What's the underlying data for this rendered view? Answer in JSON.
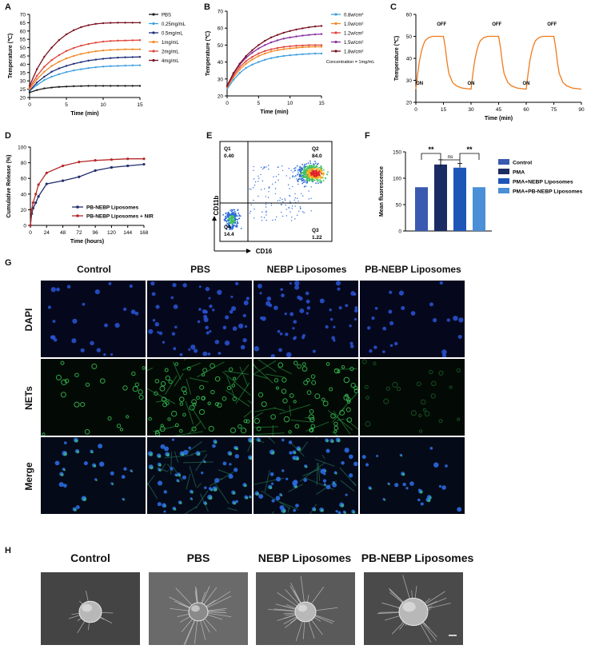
{
  "panels": {
    "A": {
      "label": "A"
    },
    "B": {
      "label": "B"
    },
    "C": {
      "label": "C"
    },
    "D": {
      "label": "D"
    },
    "E": {
      "label": "E"
    },
    "F": {
      "label": "F"
    },
    "G": {
      "label": "G"
    },
    "H": {
      "label": "H"
    }
  },
  "chart_data": [
    {
      "id": "A",
      "type": "line",
      "xlabel": "Time (min)",
      "ylabel": "Temperature (℃)",
      "xlim": [
        0,
        15
      ],
      "ylim": [
        20,
        70
      ],
      "xticks": [
        0,
        5,
        10,
        15
      ],
      "yticks": [
        20,
        25,
        30,
        35,
        40,
        45,
        50,
        55,
        60,
        65,
        70
      ],
      "legend_position": "right",
      "x": [
        0,
        1,
        2,
        3,
        4,
        5,
        6,
        7,
        8,
        9,
        10,
        11,
        12,
        13,
        14,
        15
      ],
      "series": [
        {
          "name": "PBS",
          "color": "#1a1a1a",
          "values": [
            23,
            24.5,
            25.5,
            26,
            26.4,
            26.6,
            26.8,
            26.9,
            27,
            27,
            27,
            27,
            27,
            27,
            27,
            27
          ]
        },
        {
          "name": "0.25mg/mL",
          "color": "#3f9fe0",
          "values": [
            24,
            27.5,
            30.5,
            32.5,
            34,
            35.3,
            36.3,
            37,
            37.7,
            38.2,
            38.6,
            38.9,
            39,
            39.2,
            39.3,
            39.4
          ]
        },
        {
          "name": "0.5mg/mL",
          "color": "#1f2d7a",
          "values": [
            24,
            29,
            32.5,
            35.5,
            37.5,
            39,
            40.3,
            41.3,
            42.2,
            42.8,
            43.3,
            43.7,
            44,
            44.2,
            44.3,
            44.4
          ]
        },
        {
          "name": "1mg/mL",
          "color": "#f08a24",
          "values": [
            25,
            31,
            35.5,
            39,
            41.5,
            43.5,
            45,
            46.2,
            47.1,
            47.8,
            48.3,
            48.6,
            48.8,
            49,
            49,
            49
          ]
        },
        {
          "name": "2mg/mL",
          "color": "#e0453a",
          "values": [
            26,
            33,
            38.5,
            42.5,
            45.5,
            48,
            49.8,
            51.2,
            52.2,
            53,
            53.6,
            54,
            54.2,
            54.3,
            54.4,
            54.5
          ]
        },
        {
          "name": "4mg/mL",
          "color": "#7a1020",
          "values": [
            27,
            37,
            44.5,
            50,
            54.5,
            58,
            60.5,
            62.3,
            63.5,
            64.3,
            64.7,
            64.9,
            65,
            65,
            65,
            65
          ]
        }
      ]
    },
    {
      "id": "B",
      "type": "line",
      "xlabel": "Time (min)",
      "ylabel": "Temperature (℃)",
      "xlim": [
        0,
        15
      ],
      "ylim": [
        20,
        70
      ],
      "xticks": [
        0,
        5,
        10,
        15
      ],
      "yticks": [
        20,
        30,
        40,
        50,
        60,
        70
      ],
      "legend_position": "right",
      "annotation": "Concentration = 1mg/mL",
      "x": [
        0,
        1,
        2,
        3,
        4,
        5,
        6,
        7,
        8,
        9,
        10,
        11,
        12,
        13,
        14,
        15
      ],
      "series": [
        {
          "name": "0.8w/cm²",
          "color": "#3f9fe0",
          "values": [
            24,
            29.5,
            33.5,
            36.5,
            38.5,
            40,
            41.3,
            42.3,
            43,
            43.6,
            44,
            44.3,
            44.6,
            44.8,
            45,
            45
          ]
        },
        {
          "name": "1.0w/cm²",
          "color": "#f08a24",
          "values": [
            25,
            31,
            35.5,
            39,
            41.5,
            43.5,
            45,
            46.2,
            47,
            47.6,
            48,
            48.4,
            48.7,
            48.9,
            49,
            49
          ]
        },
        {
          "name": "1.2w/cm²",
          "color": "#e0453a",
          "values": [
            25.5,
            32,
            37,
            40.5,
            43,
            45,
            46.5,
            47.5,
            48.3,
            48.9,
            49.3,
            49.6,
            49.8,
            50,
            50,
            50
          ]
        },
        {
          "name": "1.5w/cm²",
          "color": "#8a2fa0",
          "values": [
            26,
            33,
            38.5,
            42.5,
            45.5,
            48,
            50,
            51.6,
            52.8,
            53.8,
            54.5,
            55.1,
            55.6,
            56,
            56.3,
            56.5
          ]
        },
        {
          "name": "1.8w/cm²",
          "color": "#7a1020",
          "values": [
            26,
            33.5,
            39,
            43.5,
            47,
            50,
            52.5,
            54.5,
            56,
            57.3,
            58.3,
            59.2,
            59.9,
            60.5,
            61,
            61.3
          ]
        }
      ]
    },
    {
      "id": "C",
      "type": "line",
      "xlabel": "Time (min)",
      "ylabel": "Temperature (℃)",
      "xlim": [
        0,
        90
      ],
      "ylim": [
        20,
        60
      ],
      "xticks": [
        0,
        15,
        30,
        45,
        60,
        75,
        90
      ],
      "yticks": [
        20,
        30,
        40,
        50,
        60
      ],
      "annotations": [
        "ON",
        "OFF",
        "ON",
        "OFF",
        "ON",
        "OFF"
      ],
      "x": [
        0,
        1,
        2,
        3,
        4,
        5,
        7,
        9,
        11,
        13,
        15,
        16,
        17,
        18,
        20,
        22,
        25,
        28,
        30,
        31,
        32,
        33,
        34,
        35,
        37,
        39,
        41,
        43,
        45,
        46,
        47,
        48,
        50,
        52,
        55,
        58,
        60,
        61,
        62,
        63,
        64,
        65,
        67,
        69,
        71,
        73,
        75,
        76,
        77,
        78,
        80,
        82,
        85,
        88,
        90
      ],
      "series": [
        {
          "name": "",
          "color": "#f07a1a",
          "values": [
            26,
            33,
            39,
            43,
            46,
            48,
            49.5,
            50,
            50,
            50,
            50,
            45,
            38,
            33,
            29,
            27.5,
            26.5,
            26.2,
            26,
            33,
            39,
            43,
            46,
            48,
            49.5,
            50,
            50,
            50,
            50,
            45,
            38,
            33,
            29,
            27.5,
            26.5,
            26.2,
            26,
            33,
            39,
            43,
            46,
            48,
            49.5,
            50,
            50,
            50,
            50,
            45,
            38,
            33,
            29,
            27.5,
            26.5,
            26.2,
            26
          ]
        }
      ]
    },
    {
      "id": "D",
      "type": "line",
      "xlabel": "Time (hours)",
      "ylabel": "Cumulative Release (%)",
      "xlim": [
        0,
        168
      ],
      "ylim": [
        0,
        100
      ],
      "xticks": [
        0,
        24,
        48,
        72,
        96,
        120,
        144,
        168
      ],
      "yticks": [
        0,
        20,
        40,
        60,
        80,
        100
      ],
      "legend_position": "bottom-right",
      "x": [
        0,
        2,
        4,
        8,
        12,
        24,
        48,
        72,
        96,
        120,
        144,
        168
      ],
      "series": [
        {
          "name": "PB-NEBP Liposomes",
          "color": "#1f2d6a",
          "values": [
            0,
            15,
            22,
            29,
            37,
            53,
            57,
            62,
            70,
            74,
            76,
            78
          ]
        },
        {
          "name": "PB-NEBP Liposomes + NIR",
          "color": "#b52a2a",
          "values": [
            0,
            20,
            29,
            40,
            52,
            67,
            76,
            81,
            83,
            84,
            85,
            85
          ]
        }
      ]
    },
    {
      "id": "E",
      "type": "scatter",
      "xlabel": "CD16",
      "ylabel": "CD11b",
      "quadrants": [
        {
          "name": "Q1",
          "value": "0.40"
        },
        {
          "name": "Q2",
          "value": "84.0"
        },
        {
          "name": "Q3",
          "value": "1.22"
        },
        {
          "name": "Q4",
          "value": "14.4"
        }
      ]
    },
    {
      "id": "F",
      "type": "bar",
      "ylabel": "Mean fluorescence",
      "ylim": [
        0,
        150
      ],
      "yticks": [
        0,
        50,
        100,
        150
      ],
      "categories": [
        "Control",
        "PMA",
        "PMA+NEBP Liposomes",
        "PMA+PB-NEBP Liposomes"
      ],
      "values": [
        83,
        126,
        120,
        83
      ],
      "errors": [
        0,
        9,
        8,
        0
      ],
      "colors": [
        "#3a5ab0",
        "#1b2b63",
        "#1e56b8",
        "#4b8fd6"
      ],
      "significance": [
        "**",
        "ns",
        "**"
      ],
      "legend_position": "right"
    }
  ],
  "panelG": {
    "columns": [
      "Control",
      "PBS",
      "NEBP Liposomes",
      "PB-NEBP Liposomes"
    ],
    "rows": [
      "DAPI",
      "NETs",
      "Merge"
    ]
  },
  "panelH": {
    "columns": [
      "Control",
      "PBS",
      "NEBP Liposomes",
      "PB-NEBP Liposomes"
    ]
  }
}
